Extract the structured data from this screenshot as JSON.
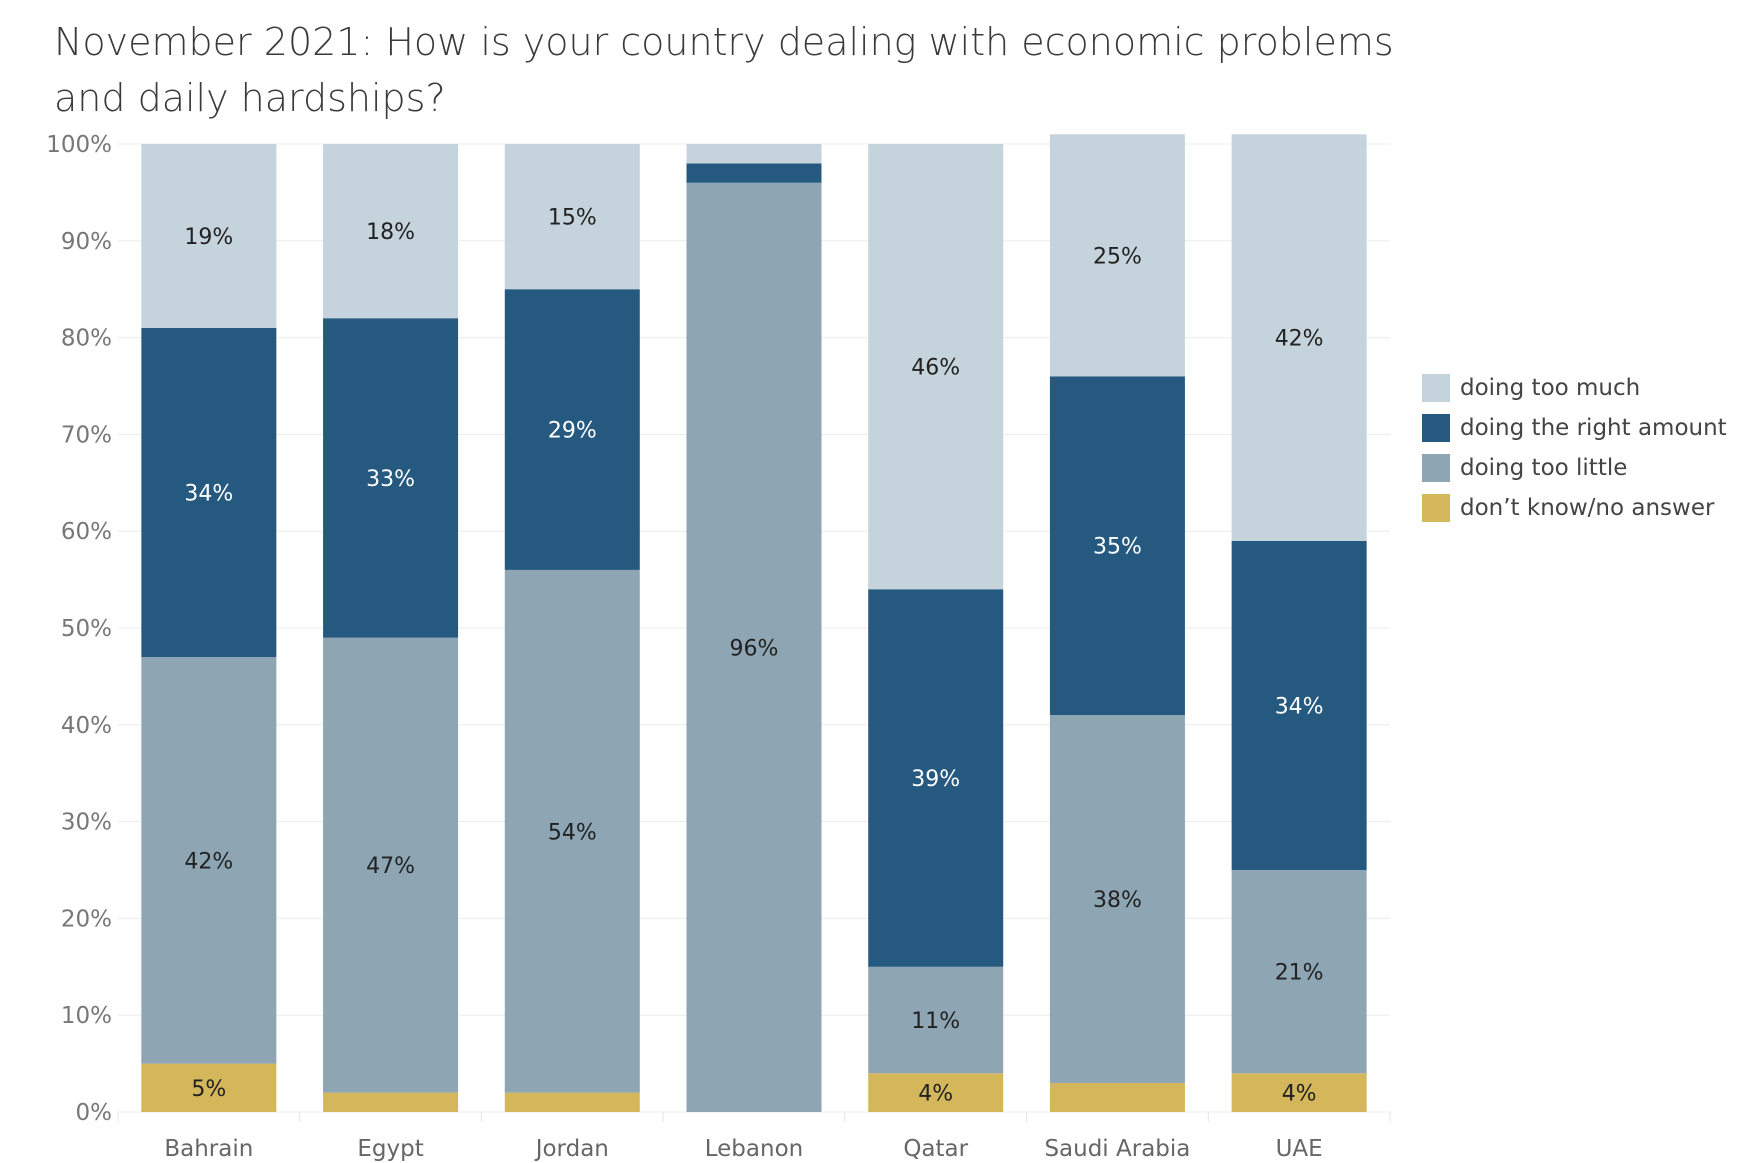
{
  "chart_data": {
    "type": "bar",
    "stacked": true,
    "title_lines": [
      "November 2021: How is your country dealing with economic problems",
      "and daily hardships?"
    ],
    "categories": [
      "Bahrain",
      "Egypt",
      "Jordan",
      "Lebanon",
      "Qatar",
      "Saudi Arabia",
      "UAE"
    ],
    "ylim": [
      0,
      100
    ],
    "yticks": [
      "0%",
      "10%",
      "20%",
      "30%",
      "40%",
      "50%",
      "60%",
      "70%",
      "80%",
      "90%",
      "100%"
    ],
    "grid": true,
    "legend_position": "right",
    "series": [
      {
        "name": "don’t know/no answer",
        "color": "#D4B75B",
        "values": [
          5,
          2,
          2,
          0,
          4,
          3,
          4
        ],
        "labels": [
          "5%",
          "",
          "",
          "",
          "4%",
          "",
          "4%"
        ]
      },
      {
        "name": "doing too little",
        "color": "#8EA5B4",
        "values": [
          42,
          47,
          54,
          96,
          11,
          38,
          21
        ],
        "labels": [
          "42%",
          "47%",
          "54%",
          "96%",
          "11%",
          "38%",
          "21%"
        ]
      },
      {
        "name": "doing the right amount",
        "color": "#255980",
        "values": [
          34,
          33,
          29,
          2,
          39,
          35,
          34
        ],
        "labels": [
          "34%",
          "33%",
          "29%",
          "",
          "39%",
          "35%",
          "34%"
        ]
      },
      {
        "name": "doing too much",
        "color": "#C5D3DC",
        "values": [
          19,
          18,
          15,
          2,
          46,
          25,
          42
        ],
        "labels": [
          "19%",
          "18%",
          "15%",
          "",
          "46%",
          "25%",
          "42%"
        ]
      }
    ],
    "legend_order": [
      "doing too much",
      "doing the right amount",
      "doing too little",
      "don’t know/no answer"
    ],
    "label_colors": {
      "dark": "#222222",
      "light": "#ffffff"
    },
    "light_label_series": [
      "doing the right amount"
    ]
  }
}
